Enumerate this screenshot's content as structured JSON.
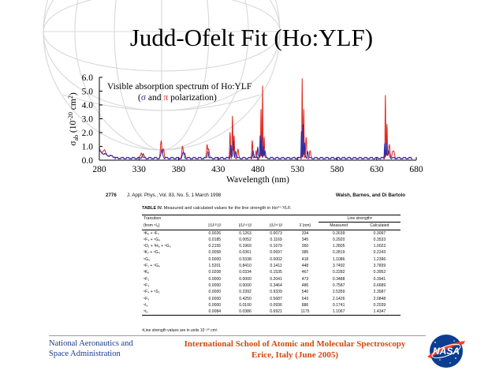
{
  "slide": {
    "title": "Judd-Ofelt Fit (Ho:YLF)",
    "footer_left": [
      "National Aeronautics and",
      "Space Administration"
    ],
    "footer_center": [
      "International School of Atomic and Molecular Spectroscopy",
      "Erice, Italy (June 2005)"
    ],
    "logo_text": "NASA"
  },
  "colors": {
    "red_series": "#e0201a",
    "blue_series": "#2a2aa8",
    "footer_left": "#1a3a8c",
    "footer_center": "#d04a10",
    "nasa_blue": "#0b3d91",
    "nasa_red": "#fc3d21"
  },
  "chart_data": {
    "type": "line",
    "annotation_line1": "Visible absorption spectrum of Ho:YLF",
    "annotation_line2_parts": [
      "(",
      "σ",
      " and ",
      "π",
      " polarization)"
    ],
    "xlabel": "Wavelength (nm)",
    "ylabel_parts": [
      "σ",
      "ab",
      " (10",
      "-20",
      " cm",
      "2",
      ")"
    ],
    "xlim": [
      280,
      680
    ],
    "ylim": [
      0,
      6.0
    ],
    "xticks": [
      280,
      330,
      380,
      430,
      480,
      530,
      580,
      630,
      680
    ],
    "yticks": [
      "0.0",
      "1.0",
      "2.0",
      "3.0",
      "4.0",
      "5.0",
      "6.0"
    ],
    "grid": false,
    "series": [
      {
        "name": "π",
        "color": "#e0201a",
        "baseline": 0.15,
        "peaks": [
          [
            279,
            0.7,
            1.2
          ],
          [
            286,
            0.3,
            2
          ],
          [
            333,
            0.4,
            1.5
          ],
          [
            358,
            1.2,
            1.2
          ],
          [
            361,
            0.7,
            1.2
          ],
          [
            385,
            0.8,
            1.3
          ],
          [
            388,
            0.4,
            1
          ],
          [
            416,
            1.0,
            1
          ],
          [
            418,
            0.7,
            1
          ],
          [
            445,
            1.9,
            0.7
          ],
          [
            448,
            3.0,
            0.6
          ],
          [
            450,
            1.6,
            0.8
          ],
          [
            455,
            0.6,
            1
          ],
          [
            473,
            1.3,
            0.8
          ],
          [
            478,
            0.5,
            0.8
          ],
          [
            484,
            3.5,
            0.5
          ],
          [
            486,
            5.3,
            0.45
          ],
          [
            488,
            1.6,
            0.6
          ],
          [
            536,
            5.8,
            0.45
          ],
          [
            538,
            3.5,
            0.5
          ],
          [
            541,
            1.5,
            0.8
          ],
          [
            546,
            0.5,
            1
          ],
          [
            641,
            4.6,
            0.5
          ],
          [
            643,
            2.4,
            0.6
          ],
          [
            646,
            1.0,
            1.2
          ],
          [
            651,
            0.5,
            2
          ]
        ]
      },
      {
        "name": "σ",
        "color": "#2a2aa8",
        "baseline": 0.15,
        "peaks": [
          [
            279,
            0.5,
            1.2
          ],
          [
            335,
            0.3,
            1.5
          ],
          [
            359,
            0.6,
            1.5
          ],
          [
            386,
            0.4,
            1.5
          ],
          [
            417,
            0.5,
            1
          ],
          [
            446,
            1.0,
            0.8
          ],
          [
            449,
            1.2,
            0.8
          ],
          [
            452,
            0.5,
            1
          ],
          [
            474,
            0.6,
            1
          ],
          [
            480,
            0.8,
            1
          ],
          [
            483,
            1.6,
            0.6
          ],
          [
            485,
            1.4,
            0.5
          ],
          [
            487,
            0.9,
            0.6
          ],
          [
            489,
            0.5,
            1
          ],
          [
            535,
            2.0,
            0.5
          ],
          [
            537,
            2.5,
            0.5
          ],
          [
            539,
            1.1,
            0.7
          ],
          [
            543,
            0.5,
            1
          ],
          [
            640,
            1.1,
            0.5
          ],
          [
            642,
            1.2,
            0.6
          ],
          [
            645,
            0.5,
            1.5
          ]
        ]
      }
    ]
  },
  "journal": {
    "page": "2776",
    "citation": "J. Appl. Phys., Vol. 83, No. 5, 1 March 1998",
    "authors": "Walsh, Barnes, and Di Bartolo",
    "caption_bold": "TABLE IV.",
    "caption_rest": " Measured and calculated values for the line strength in Ho³⁺:YLF.",
    "headers": {
      "transition": [
        "Transition",
        "(from ⁵I₈)"
      ],
      "u2": "|⟨U⁽²⁾⟩|²",
      "u4": "|⟨U⁽⁴⁾⟩|²",
      "u6": "|⟨U⁽⁶⁾⟩|²",
      "lambda": "λ̄ (nm)",
      "ls": "Line strengthᵃ",
      "measured": "Measured",
      "calculated": "Calculated"
    },
    "rows": [
      [
        "³K₈ + ³F₄",
        "0.0026",
        "0.1263",
        "0.0073",
        "334",
        "0.2639",
        "0.3097"
      ],
      [
        "⁵F₄ + ⁵G₄",
        "0.0185",
        "0.0052",
        "0.1169",
        "345",
        "0.2920",
        "0.3533"
      ],
      [
        "⁵D₁ + ³H₆ + ⁵G₃",
        "0.2155",
        "0.1969",
        "0.1679",
        "360",
        "1.2805",
        "1.0023"
      ],
      [
        "³K₇ + ⁵G₄",
        "0.0058",
        "0.0361",
        "0.0697",
        "385",
        "0.2819",
        "0.2243"
      ],
      [
        "⁵G₅",
        "0.0000",
        "0.5338",
        "0.0002",
        "418",
        "1.1086",
        "1.2396"
      ],
      [
        "⁵F₁ + ⁵G₆",
        "1.5201",
        "0.8410",
        "0.1411",
        "448",
        "3.7492",
        "3.7839"
      ],
      [
        "³K₈",
        "0.0208",
        "0.0334",
        "0.1535",
        "467",
        "0.2282",
        "0.3952"
      ],
      [
        "⁵F₂",
        "0.0000",
        "0.0000",
        "0.2041",
        "473",
        "0.3488",
        "0.3941"
      ],
      [
        "⁵F₃",
        "0.0000",
        "0.0000",
        "0.3464",
        "486",
        "0.7587",
        "0.6689"
      ],
      [
        "⁵F₄ + ⁵S₂",
        "0.0000",
        "0.2392",
        "0.9339",
        "540",
        "2.5359",
        "2.3587"
      ],
      [
        "⁵F₅",
        "0.0000",
        "0.4250",
        "0.5687",
        "643",
        "2.1426",
        "2.0848"
      ],
      [
        "⁵I₅",
        "0.0000",
        "0.0100",
        "0.0936",
        "886",
        "0.1741",
        "0.2039"
      ],
      [
        "⁵I₆",
        "0.0084",
        "0.0386",
        "0.6921",
        "1175",
        "1.1067",
        "1.4347"
      ]
    ],
    "footnote": "ᵃLine strength values are in units 10⁻²⁰ cm²."
  }
}
